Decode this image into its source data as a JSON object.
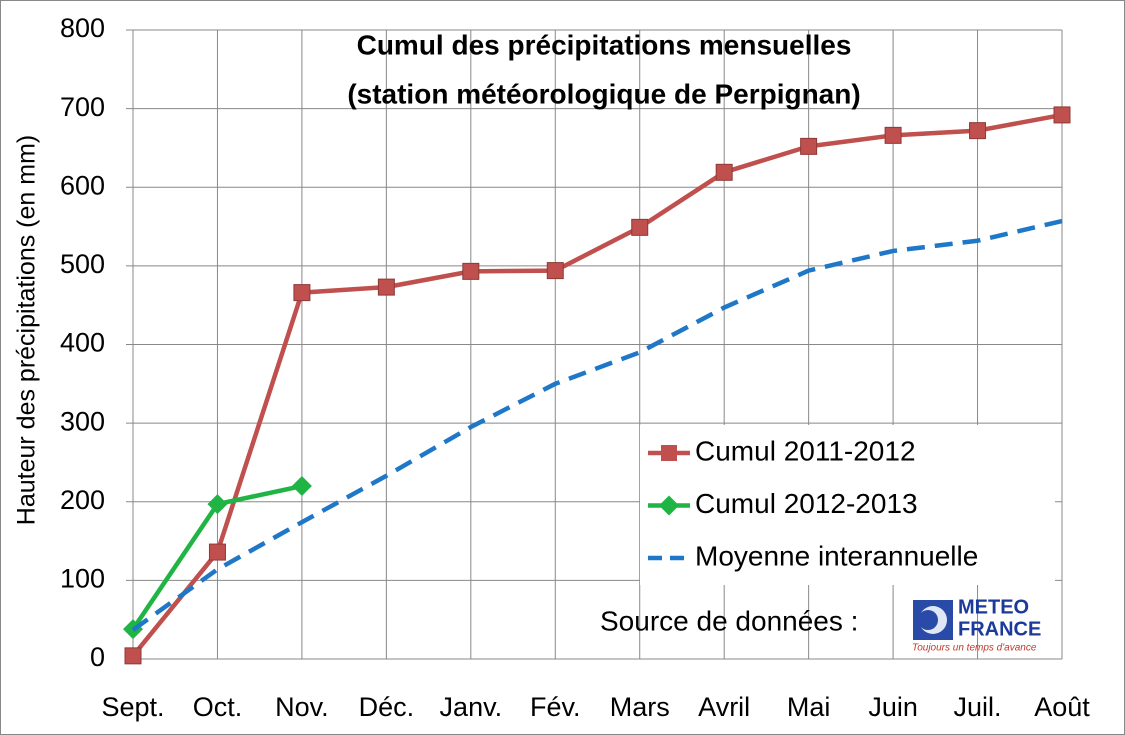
{
  "chart_data": {
    "type": "line",
    "title": [
      "Cumul des précipitations mensuelles",
      "(station météorologique de Perpignan)"
    ],
    "y_label": "Hauteur des précipitations (en mm)",
    "categories": [
      "Sept.",
      "Oct.",
      "Nov.",
      "Déc.",
      "Janv.",
      "Fév.",
      "Mars",
      "Avril",
      "Mai",
      "Juin",
      "Juil.",
      "Août"
    ],
    "series": [
      {
        "name": "Cumul 2011-2012",
        "color": "#c0504d",
        "marker": "square",
        "dashed": false,
        "values": [
          4,
          136,
          466,
          473,
          493,
          494,
          549,
          619,
          652,
          666,
          672,
          692
        ]
      },
      {
        "name": "Cumul 2012-2013",
        "color": "#1fb444",
        "marker": "diamond",
        "dashed": false,
        "values": [
          38,
          197,
          220,
          null,
          null,
          null,
          null,
          null,
          null,
          null,
          null,
          null
        ]
      },
      {
        "name": "Moyenne interannuelle",
        "color": "#1f77c8",
        "marker": "none",
        "dashed": true,
        "values": [
          37,
          114,
          174,
          233,
          295,
          350,
          390,
          447,
          494,
          519,
          532,
          557
        ]
      }
    ],
    "ylim": [
      0,
      800
    ],
    "yticks": [
      0,
      100,
      200,
      300,
      400,
      500,
      600,
      700,
      800
    ],
    "grid": true,
    "source": "Source de données :",
    "logo": {
      "line1": "METEO",
      "line2": "FRANCE",
      "tagline": "Toujours un temps d'avance"
    }
  }
}
